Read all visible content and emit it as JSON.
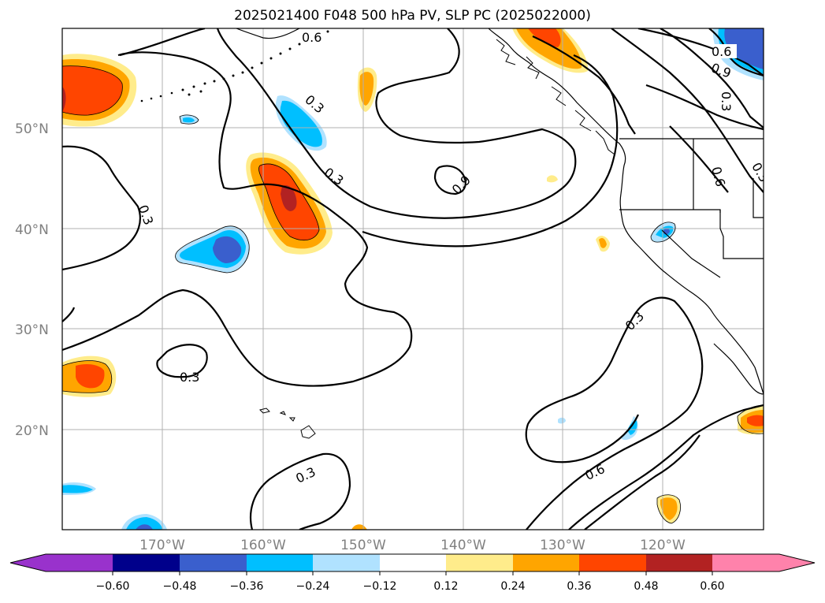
{
  "title": "2025021400 F048 500 hPa PV, SLP PC (2025022000)",
  "map": {
    "lat_labels": [
      "50°N",
      "40°N",
      "30°N",
      "20°N"
    ],
    "lon_labels": [
      "170°W",
      "160°W",
      "150°W",
      "140°W",
      "130°W",
      "120°W"
    ],
    "contour_labels": [
      "0.6",
      "0.6",
      "0.3",
      "0.9",
      "0.3",
      "0.3",
      "0.3",
      "0.3",
      "0.3",
      "0.6",
      "0.9",
      "0.3",
      "0.6",
      "0.3"
    ]
  },
  "colorbar": {
    "ticks": [
      "−0.60",
      "−0.48",
      "−0.36",
      "−0.24",
      "−0.12",
      "0.12",
      "0.24",
      "0.36",
      "0.48",
      "0.60"
    ],
    "colors": [
      "#9932cc",
      "#00008b",
      "#3a5fcd",
      "#00bfff",
      "#b0e2ff",
      "#ffffff",
      "#ffec8b",
      "#ffa500",
      "#ff4500",
      "#b22222",
      "#ff82ab"
    ]
  },
  "colors": {
    "positive_weak": "#ffec8b",
    "positive_mid": "#ffa500",
    "positive_strong": "#ff4500",
    "positive_max": "#b22222",
    "negative_weak": "#b0e2ff",
    "negative_mid": "#00bfff",
    "negative_strong": "#3a5fcd"
  }
}
